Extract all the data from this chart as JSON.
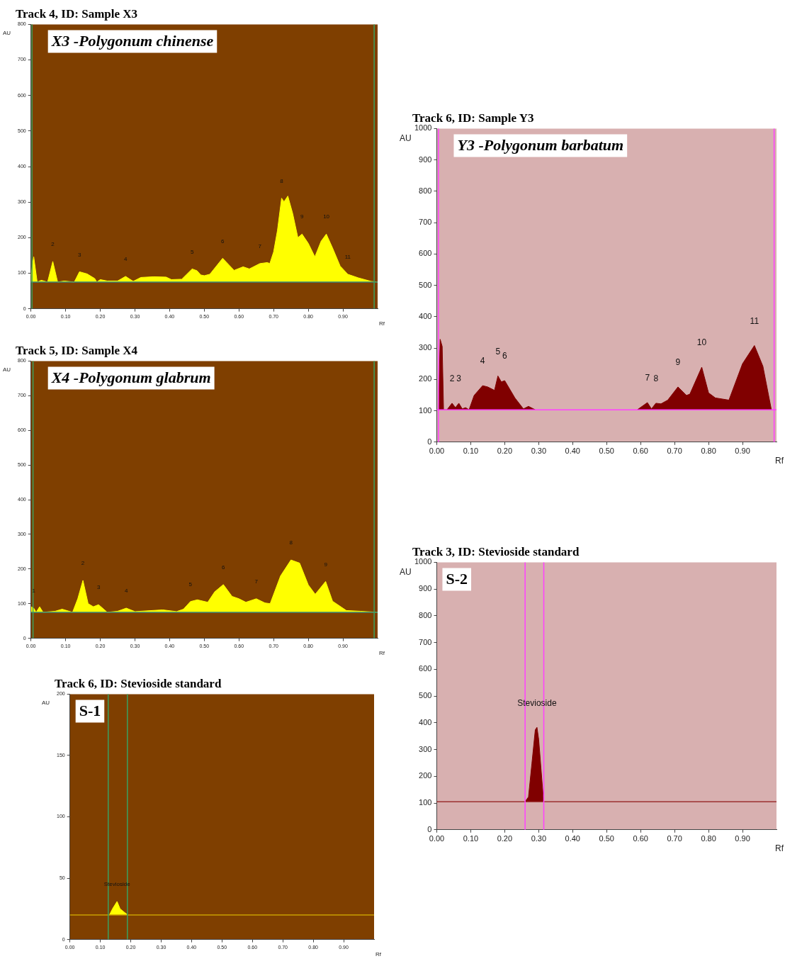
{
  "chart_data": [
    {
      "type": "area",
      "title": "Track 4, ID: Sample X3",
      "subtitle": "X3 -Polygonum chinense",
      "xlabel": "Rf",
      "ylabel": "AU",
      "xlim": [
        0,
        1
      ],
      "ylim": [
        0,
        800
      ],
      "xticks": [
        {
          "value": 0,
          "label": "0.00"
        },
        {
          "value": 0.1,
          "label": "0.10"
        },
        {
          "value": 0.2,
          "label": "0.20"
        },
        {
          "value": 0.3,
          "label": "0.30"
        },
        {
          "value": 0.4,
          "label": "0.40"
        },
        {
          "value": 0.5,
          "label": "0.50"
        },
        {
          "value": 0.6,
          "label": "0.60"
        },
        {
          "value": 0.7,
          "label": "0.70"
        },
        {
          "value": 0.8,
          "label": "0.80"
        },
        {
          "value": 0.9,
          "label": "0.90"
        }
      ],
      "yticks": [
        0,
        100,
        200,
        300,
        400,
        500,
        600,
        700,
        800
      ],
      "x": [
        0,
        0.008,
        0.018,
        0.03,
        0.048,
        0.063,
        0.077,
        0.096,
        0.125,
        0.14,
        0.162,
        0.184,
        0.19,
        0.2,
        0.22,
        0.25,
        0.273,
        0.295,
        0.317,
        0.354,
        0.39,
        0.405,
        0.435,
        0.465,
        0.479,
        0.49,
        0.5,
        0.516,
        0.553,
        0.586,
        0.612,
        0.63,
        0.66,
        0.682,
        0.689,
        0.7,
        0.711,
        0.723,
        0.73,
        0.741,
        0.755,
        0.77,
        0.782,
        0.8,
        0.819,
        0.837,
        0.852,
        0.87,
        0.892,
        0.914,
        0.944,
        0.981,
        1
      ],
      "series": [
        {
          "color": "#ffff00",
          "values": [
            94,
            146,
            75,
            80,
            75,
            133,
            75,
            78,
            75,
            104,
            98,
            85,
            75,
            82,
            78,
            78,
            91,
            77,
            88,
            90,
            89,
            82,
            83,
            112,
            107,
            95,
            93,
            97,
            142,
            108,
            118,
            112,
            127,
            130,
            127,
            160,
            220,
            311,
            301,
            317,
            268,
            200,
            210,
            184,
            146,
            190,
            210,
            171,
            120,
            97,
            87,
            77,
            75
          ]
        }
      ],
      "ref_lines": [
        {
          "axis": "y",
          "value": 75,
          "color": "#3a8a7a"
        },
        {
          "axis": "x",
          "value": 0.003,
          "color": "#3aa060"
        },
        {
          "axis": "x",
          "value": 0.99,
          "color": "#3aa060"
        }
      ],
      "annotations": [
        {
          "text": "2",
          "x": 0.063,
          "y": 133
        },
        {
          "text": "3",
          "x": 0.14,
          "y": 104
        },
        {
          "text": "4",
          "x": 0.273,
          "y": 91
        },
        {
          "text": "5",
          "x": 0.465,
          "y": 112
        },
        {
          "text": "6",
          "x": 0.553,
          "y": 142
        },
        {
          "text": "7",
          "x": 0.66,
          "y": 127
        },
        {
          "text": "8",
          "x": 0.723,
          "y": 311
        },
        {
          "text": "9",
          "x": 0.782,
          "y": 210
        },
        {
          "text": "10",
          "x": 0.852,
          "y": 210
        },
        {
          "text": "11",
          "x": 0.914,
          "y": 97
        }
      ]
    },
    {
      "type": "area",
      "title": "Track 5, ID: Sample X4",
      "subtitle": "X4 -Polygonum glabrum",
      "xlabel": "Rf",
      "ylabel": "AU",
      "xlim": [
        0,
        1
      ],
      "ylim": [
        0,
        800
      ],
      "xticks": [
        {
          "value": 0,
          "label": "0.00"
        },
        {
          "value": 0.1,
          "label": "0.10"
        },
        {
          "value": 0.2,
          "label": "0.20"
        },
        {
          "value": 0.3,
          "label": "0.30"
        },
        {
          "value": 0.4,
          "label": "0.40"
        },
        {
          "value": 0.5,
          "label": "0.50"
        },
        {
          "value": 0.6,
          "label": "0.60"
        },
        {
          "value": 0.7,
          "label": "0.70"
        },
        {
          "value": 0.8,
          "label": "0.80"
        },
        {
          "value": 0.9,
          "label": "0.90"
        }
      ],
      "yticks": [
        0,
        100,
        200,
        300,
        400,
        500,
        600,
        700,
        800
      ],
      "x": [
        0,
        0.008,
        0.015,
        0.025,
        0.035,
        0.07,
        0.09,
        0.12,
        0.135,
        0.15,
        0.165,
        0.18,
        0.195,
        0.21,
        0.22,
        0.25,
        0.275,
        0.3,
        0.38,
        0.42,
        0.44,
        0.46,
        0.48,
        0.51,
        0.53,
        0.555,
        0.58,
        0.6,
        0.62,
        0.65,
        0.675,
        0.69,
        0.72,
        0.75,
        0.775,
        0.8,
        0.82,
        0.85,
        0.87,
        0.91,
        0.95,
        1
      ],
      "series": [
        {
          "color": "#ffff00",
          "values": [
            91,
            87,
            75,
            91,
            75,
            78,
            84,
            75,
            114,
            167,
            100,
            91,
            97,
            84,
            75,
            78,
            87,
            77,
            82,
            77,
            84,
            106,
            111,
            104,
            134,
            155,
            121,
            114,
            104,
            114,
            102,
            100,
            180,
            226,
            217,
            154,
            127,
            164,
            107,
            80,
            78,
            75
          ]
        }
      ],
      "ref_lines": [
        {
          "axis": "y",
          "value": 75,
          "color": "#3a8a7a"
        },
        {
          "axis": "x",
          "value": 0.006,
          "color": "#3aa060"
        },
        {
          "axis": "x",
          "value": 0.99,
          "color": "#3aa060"
        }
      ],
      "annotations": [
        {
          "text": "1",
          "x": 0.008,
          "y": 87
        },
        {
          "text": "2",
          "x": 0.15,
          "y": 167
        },
        {
          "text": "3",
          "x": 0.195,
          "y": 97
        },
        {
          "text": "4",
          "x": 0.275,
          "y": 87
        },
        {
          "text": "5",
          "x": 0.46,
          "y": 106
        },
        {
          "text": "6",
          "x": 0.555,
          "y": 155
        },
        {
          "text": "7",
          "x": 0.65,
          "y": 114
        },
        {
          "text": "8",
          "x": 0.75,
          "y": 226
        },
        {
          "text": "9",
          "x": 0.85,
          "y": 164
        }
      ]
    },
    {
      "type": "area",
      "title": "Track 6, ID: Stevioside standard",
      "subtitle": "S-1",
      "xlabel": "Rf",
      "ylabel": "AU",
      "xlim": [
        0,
        1
      ],
      "ylim": [
        0,
        200
      ],
      "xticks": [
        {
          "value": 0,
          "label": "0.00"
        },
        {
          "value": 0.1,
          "label": "0.10"
        },
        {
          "value": 0.2,
          "label": "0.20"
        },
        {
          "value": 0.3,
          "label": "0.30"
        },
        {
          "value": 0.4,
          "label": "0.40"
        },
        {
          "value": 0.5,
          "label": "0.50"
        },
        {
          "value": 0.6,
          "label": "0.60"
        },
        {
          "value": 0.7,
          "label": "0.70"
        },
        {
          "value": 0.8,
          "label": "0.80"
        },
        {
          "value": 0.9,
          "label": "0.90"
        }
      ],
      "yticks": [
        0,
        50,
        100,
        150,
        200
      ],
      "x": [
        0.13,
        0.14,
        0.155,
        0.165,
        0.18,
        0.19
      ],
      "series": [
        {
          "color": "#ffff00",
          "values": [
            20,
            25,
            31,
            25,
            22,
            20
          ]
        }
      ],
      "ref_lines": [
        {
          "axis": "y",
          "value": 20,
          "color": "#c8a000"
        },
        {
          "axis": "x",
          "value": 0.126,
          "color": "#3aa060"
        },
        {
          "axis": "x",
          "value": 0.189,
          "color": "#3aa060"
        }
      ],
      "annotations": [
        {
          "text": "Stevioside",
          "x": 0.155,
          "y": 31
        }
      ]
    },
    {
      "type": "area",
      "title": "Track 6, ID: Sample Y3",
      "subtitle": "Y3 -Polygonum barbatum",
      "xlabel": "Rf",
      "ylabel": "AU",
      "xlim": [
        0,
        1
      ],
      "ylim": [
        0,
        1000
      ],
      "xticks": [
        {
          "value": 0,
          "label": "0.00"
        },
        {
          "value": 0.1,
          "label": "0.10"
        },
        {
          "value": 0.2,
          "label": "0.20"
        },
        {
          "value": 0.3,
          "label": "0.30"
        },
        {
          "value": 0.4,
          "label": "0.40"
        },
        {
          "value": 0.5,
          "label": "0.50"
        },
        {
          "value": 0.6,
          "label": "0.60"
        },
        {
          "value": 0.7,
          "label": "0.70"
        },
        {
          "value": 0.8,
          "label": "0.80"
        },
        {
          "value": 0.9,
          "label": "0.90"
        }
      ],
      "yticks": [
        0,
        100,
        200,
        300,
        400,
        500,
        600,
        700,
        800,
        900,
        1000
      ],
      "x": [
        0.005,
        0.01,
        0.016,
        0.02,
        0.03,
        0.045,
        0.055,
        0.065,
        0.075,
        0.085,
        0.095,
        0.11,
        0.135,
        0.15,
        0.17,
        0.18,
        0.19,
        0.2,
        0.23,
        0.255,
        0.27,
        0.29,
        0.44,
        0.59,
        0.62,
        0.632,
        0.645,
        0.66,
        0.68,
        0.71,
        0.735,
        0.745,
        0.78,
        0.8,
        0.82,
        0.86,
        0.9,
        0.935,
        0.96,
        0.985
      ],
      "series": [
        {
          "color": "#800000",
          "values": [
            103,
            328,
            305,
            103,
            103,
            124,
            110,
            124,
            106,
            110,
            103,
            149,
            180,
            176,
            165,
            211,
            192,
            196,
            141,
            106,
            114,
            103,
            null,
            103,
            126,
            106,
            124,
            122,
            134,
            176,
            149,
            153,
            239,
            157,
            141,
            134,
            250,
            308,
            242,
            103
          ]
        }
      ],
      "ref_lines": [
        {
          "axis": "y",
          "value": 103,
          "color": "#ff40ff"
        },
        {
          "axis": "x",
          "value": 0.005,
          "color": "#ff40ff"
        },
        {
          "axis": "x",
          "value": 0.993,
          "color": "#ff40ff"
        }
      ],
      "annotations": [
        {
          "text": "2",
          "x": 0.045,
          "y": 124
        },
        {
          "text": "3",
          "x": 0.065,
          "y": 124
        },
        {
          "text": "4",
          "x": 0.135,
          "y": 180
        },
        {
          "text": "5",
          "x": 0.18,
          "y": 211
        },
        {
          "text": "6",
          "x": 0.2,
          "y": 196
        },
        {
          "text": "7",
          "x": 0.62,
          "y": 126
        },
        {
          "text": "8",
          "x": 0.645,
          "y": 124
        },
        {
          "text": "9",
          "x": 0.71,
          "y": 176
        },
        {
          "text": "10",
          "x": 0.78,
          "y": 239
        },
        {
          "text": "11",
          "x": 0.935,
          "y": 308
        }
      ]
    },
    {
      "type": "area",
      "title": "Track 3, ID: Stevioside standard",
      "subtitle": "S-2",
      "xlabel": "Rf",
      "ylabel": "AU",
      "xlim": [
        0,
        1
      ],
      "ylim": [
        0,
        1000
      ],
      "xticks": [
        {
          "value": 0,
          "label": "0.00"
        },
        {
          "value": 0.1,
          "label": "0.10"
        },
        {
          "value": 0.2,
          "label": "0.20"
        },
        {
          "value": 0.3,
          "label": "0.30"
        },
        {
          "value": 0.4,
          "label": "0.40"
        },
        {
          "value": 0.5,
          "label": "0.50"
        },
        {
          "value": 0.6,
          "label": "0.60"
        },
        {
          "value": 0.7,
          "label": "0.70"
        },
        {
          "value": 0.8,
          "label": "0.80"
        },
        {
          "value": 0.9,
          "label": "0.90"
        }
      ],
      "yticks": [
        0,
        100,
        200,
        300,
        400,
        500,
        600,
        700,
        800,
        900,
        1000
      ],
      "x": [
        0.26,
        0.27,
        0.28,
        0.29,
        0.295,
        0.3,
        0.31,
        0.315
      ],
      "series": [
        {
          "color": "#800000",
          "values": [
            105,
            123,
            248,
            374,
            383,
            338,
            177,
            105
          ]
        }
      ],
      "ref_lines": [
        {
          "axis": "y",
          "value": 105,
          "color": "#9b3030"
        },
        {
          "axis": "x",
          "value": 0.26,
          "color": "#ff40ff"
        },
        {
          "axis": "x",
          "value": 0.315,
          "color": "#ff40ff"
        }
      ],
      "annotations": [
        {
          "text": "Stevioside",
          "x": 0.295,
          "y": 383
        }
      ]
    }
  ]
}
